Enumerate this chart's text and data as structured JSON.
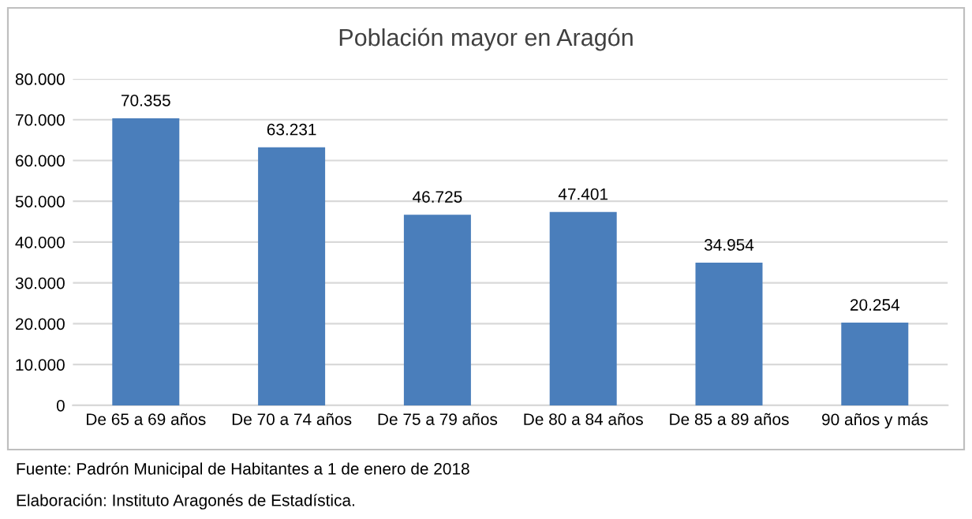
{
  "chart_data": {
    "type": "bar",
    "title": "Población mayor en Aragón",
    "categories": [
      "De 65 a 69 años",
      "De 70 a 74 años",
      "De 75 a 79 años",
      "De 80 a 84 años",
      "De 85 a 89 años",
      "90 años y más"
    ],
    "values": [
      70355,
      63231,
      46725,
      47401,
      34954,
      20254
    ],
    "value_labels": [
      "70.355",
      "63.231",
      "46.725",
      "47.401",
      "34.954",
      "20.254"
    ],
    "color": "#4a7ebb",
    "ylim": [
      0,
      80000
    ],
    "yticks": [
      {
        "value": 0,
        "label": "0"
      },
      {
        "value": 10000,
        "label": "10.000"
      },
      {
        "value": 20000,
        "label": "20.000"
      },
      {
        "value": 30000,
        "label": "30.000"
      },
      {
        "value": 40000,
        "label": "40.000"
      },
      {
        "value": 50000,
        "label": "50.000"
      },
      {
        "value": 60000,
        "label": "60.000"
      },
      {
        "value": 70000,
        "label": "70.000"
      },
      {
        "value": 80000,
        "label": "80.000"
      }
    ],
    "grid": "y",
    "annotations": [
      "Fuente: Padrón Municipal de Habitantes a 1 de enero de 2018",
      "Elaboración: Instituto Aragonés de Estadística."
    ]
  }
}
